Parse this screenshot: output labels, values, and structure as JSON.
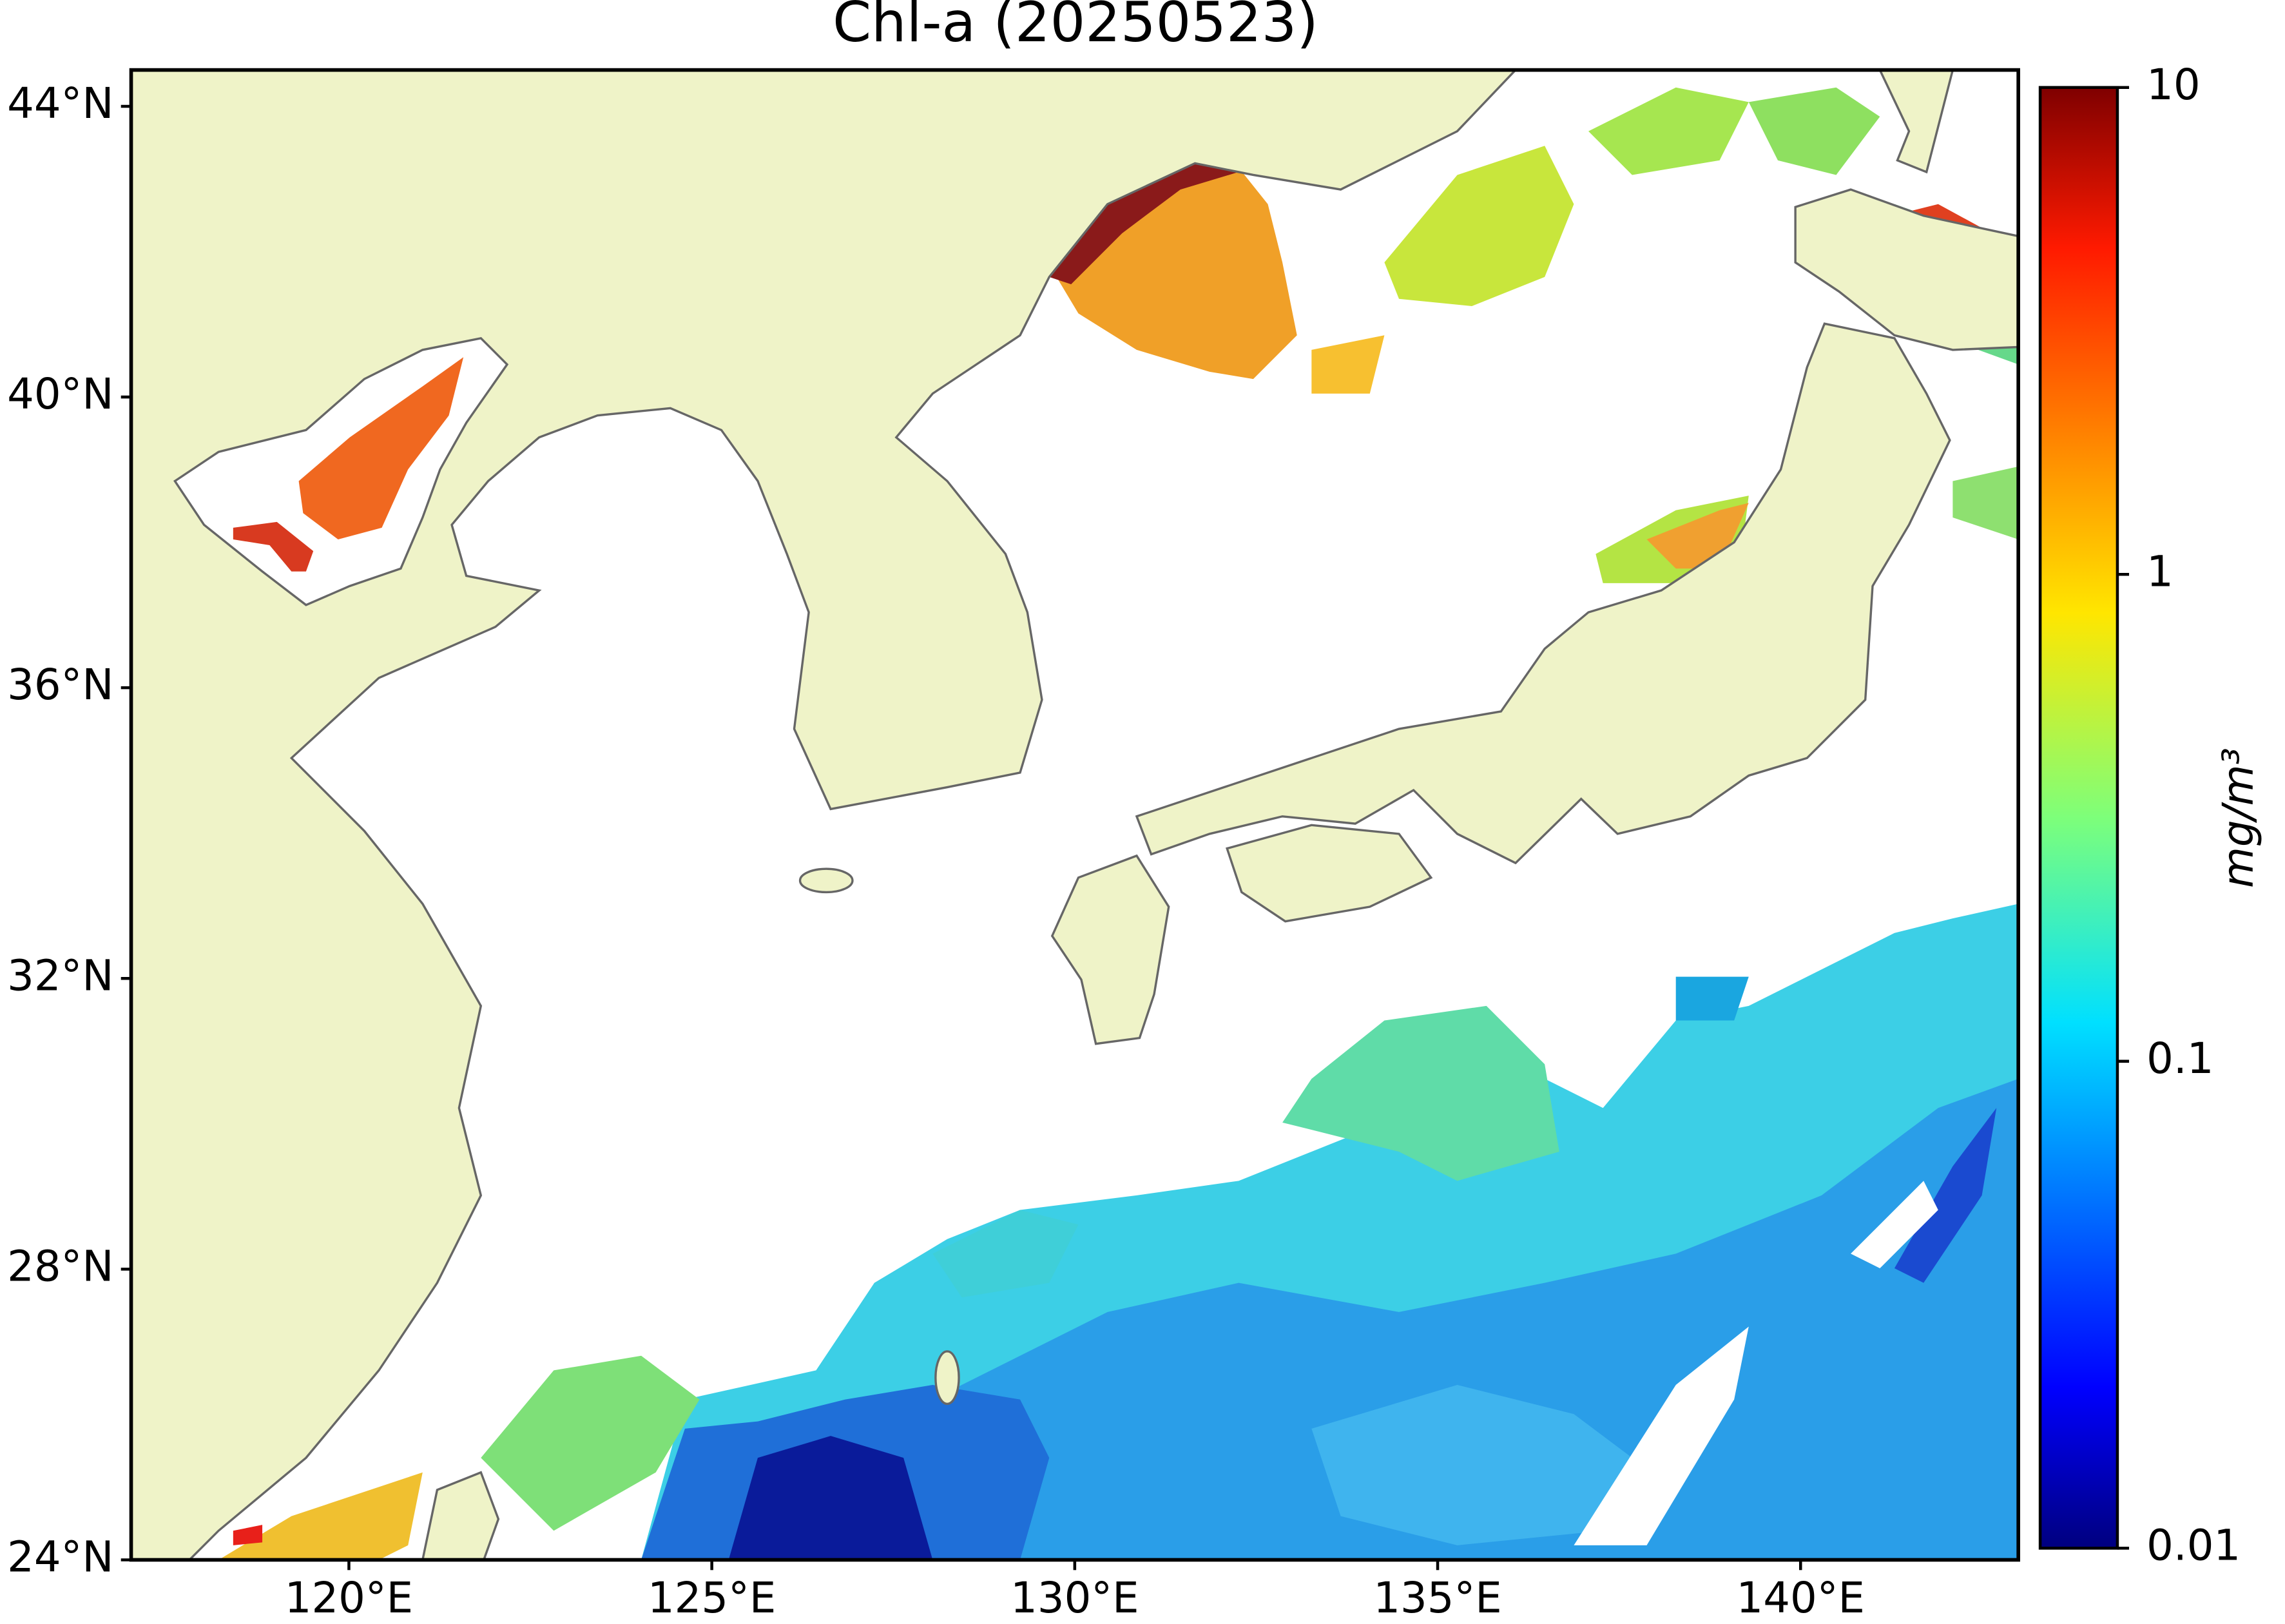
{
  "title": "Chl-a (20250523)",
  "map": {
    "xlim": [
      117,
      143
    ],
    "ylim": [
      24,
      44.5
    ],
    "xticks": [
      {
        "value": 120,
        "label": "120°E"
      },
      {
        "value": 125,
        "label": "125°E"
      },
      {
        "value": 130,
        "label": "130°E"
      },
      {
        "value": 135,
        "label": "135°E"
      },
      {
        "value": 140,
        "label": "140°E"
      }
    ],
    "yticks": [
      {
        "value": 24,
        "label": "24°N"
      },
      {
        "value": 28,
        "label": "28°N"
      },
      {
        "value": 32,
        "label": "32°N"
      },
      {
        "value": 36,
        "label": "36°N"
      },
      {
        "value": 40,
        "label": "40°N"
      },
      {
        "value": 44,
        "label": "44°N"
      }
    ]
  },
  "colorbar": {
    "label": "mg/m³",
    "scale": "log",
    "lim": [
      0.01,
      10
    ],
    "ticks": [
      0.01,
      0.1,
      1,
      10
    ]
  }
}
